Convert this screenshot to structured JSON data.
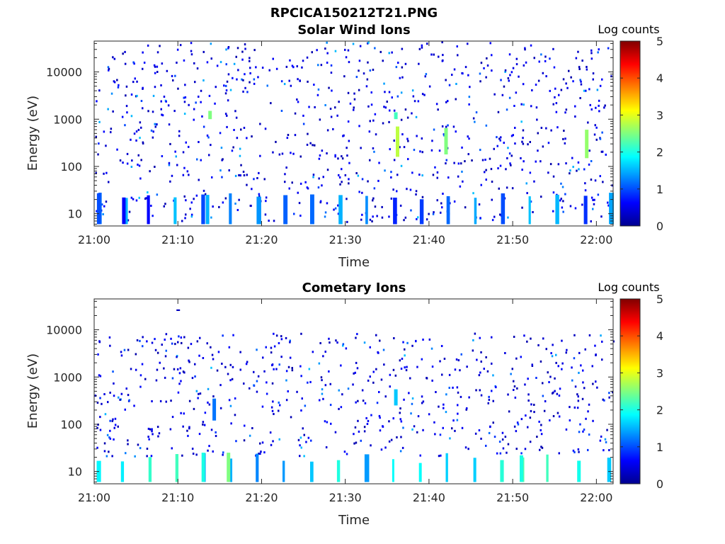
{
  "figure_title": "RPCICA150212T21.PNG",
  "colorbar": {
    "label": "Log counts",
    "ticks": [
      "0",
      "1",
      "2",
      "3",
      "4",
      "5"
    ],
    "range": [
      0,
      5
    ],
    "colormap": "jet"
  },
  "chart_data": [
    {
      "type": "heatmap",
      "title": "Solar Wind Ions",
      "xlabel": "Time",
      "ylabel": "Energy (eV)",
      "x_range": [
        "21:00",
        "22:02"
      ],
      "y_range": [
        5.5,
        45000
      ],
      "y_scale": "log",
      "x_ticks": [
        "21:00",
        "21:10",
        "21:20",
        "21:30",
        "21:40",
        "21:50",
        "22:00"
      ],
      "y_ticks": [
        "10",
        "100",
        "1000",
        "10000"
      ],
      "z_range": [
        0,
        5
      ],
      "z_label": "Log counts",
      "features": [
        {
          "time": "21:00.5",
          "energy_low": 6,
          "energy_high": 27,
          "log_counts": 1.0
        },
        {
          "time": "21:03.5",
          "energy_low": 6,
          "energy_high": 22,
          "log_counts": 0.6
        },
        {
          "time": "21:13.5",
          "energy_low": 6,
          "energy_high": 25,
          "log_counts": 1.5
        },
        {
          "time": "21:36.2",
          "energy_low": 160,
          "energy_high": 700,
          "log_counts": 2.8
        },
        {
          "time": "21:42.0",
          "energy_low": 180,
          "energy_high": 650,
          "log_counts": 2.5
        },
        {
          "time": "21:58.8",
          "energy_low": 150,
          "energy_high": 600,
          "log_counts": 2.6
        },
        {
          "time": "21:13.8",
          "energy_low": 1000,
          "energy_high": 1500,
          "log_counts": 2.5
        },
        {
          "time": "21:36.0",
          "energy_low": 1000,
          "energy_high": 1400,
          "log_counts": 2.2
        }
      ]
    },
    {
      "type": "heatmap",
      "title": "Cometary Ions",
      "xlabel": "Time",
      "ylabel": "Energy (eV)",
      "x_range": [
        "21:00",
        "22:02"
      ],
      "y_range": [
        5.5,
        45000
      ],
      "y_scale": "log",
      "x_ticks": [
        "21:00",
        "21:10",
        "21:20",
        "21:30",
        "21:40",
        "21:50",
        "22:00"
      ],
      "y_ticks": [
        "10",
        "100",
        "1000",
        "10000"
      ],
      "z_range": [
        0,
        5
      ],
      "z_label": "Log counts",
      "features": [
        {
          "time": "21:16.0",
          "energy_low": 6,
          "energy_high": 25,
          "log_counts": 2.5
        },
        {
          "time": "21:13.0",
          "energy_low": 6,
          "energy_high": 25,
          "log_counts": 2.0
        },
        {
          "time": "21:51.0",
          "energy_low": 6,
          "energy_high": 22,
          "log_counts": 2.0
        },
        {
          "time": "21:36.0",
          "energy_low": 250,
          "energy_high": 550,
          "log_counts": 1.6
        },
        {
          "time": "21:14.3",
          "energy_low": 120,
          "energy_high": 350,
          "log_counts": 1.2
        },
        {
          "time": "21:10.0",
          "energy_low": 25000,
          "energy_high": 27000,
          "log_counts": 0.3
        }
      ]
    }
  ]
}
